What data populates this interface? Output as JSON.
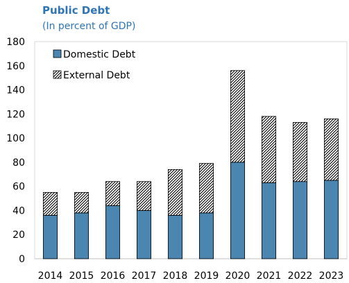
{
  "chart_data": {
    "type": "bar",
    "stacked": true,
    "title": "Public Debt",
    "subtitle": "(In percent of GDP)",
    "categories": [
      "2014",
      "2015",
      "2016",
      "2017",
      "2018",
      "2019",
      "2020",
      "2021",
      "2022",
      "2023"
    ],
    "series": [
      {
        "name": "Domestic Debt",
        "values": [
          36,
          38,
          44,
          40,
          36,
          38,
          80,
          63,
          64,
          65
        ],
        "color": "#4a86b0",
        "pattern": "solid"
      },
      {
        "name": "External Debt",
        "values": [
          19,
          17,
          20,
          24,
          38,
          41,
          76,
          55,
          49,
          51
        ],
        "color": "#ffffff",
        "pattern": "diagonal-hatch"
      }
    ],
    "ylim": [
      0,
      180
    ],
    "yticks": [
      0,
      20,
      40,
      60,
      80,
      100,
      120,
      140,
      160,
      180
    ],
    "xlabel": "",
    "ylabel": "",
    "grid": false,
    "legend_position": "top-left"
  }
}
